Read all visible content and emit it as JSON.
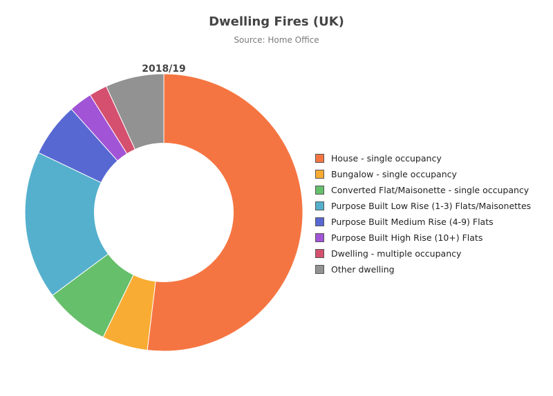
{
  "chart_data": {
    "type": "pie",
    "title": "Dwelling Fires (UK)",
    "subtitle": "Source: Home Office",
    "center_label": "2018/19",
    "hole": 0.5,
    "series": [
      {
        "name": "2018/19",
        "categories": [
          "House - single occupancy",
          "Bungalow - single occupancy",
          "Converted Flat/Maisonette - single occupancy",
          "Purpose Built Low Rise (1-3) Flats/Maisonettes",
          "Purpose Built Medium Rise (4-9) Flats",
          "Purpose Built High Rise (10+) Flats",
          "Dwelling - multiple occupancy",
          "Other dwelling"
        ],
        "values": [
          51.9,
          5.3,
          7.6,
          17.3,
          6.3,
          2.7,
          2.1,
          6.8
        ],
        "colors": [
          "#f57542",
          "#f9ac33",
          "#66bf6a",
          "#55b0cd",
          "#5868d2",
          "#a154d6",
          "#d5506f",
          "#929292"
        ]
      }
    ],
    "legend_position": "right"
  }
}
